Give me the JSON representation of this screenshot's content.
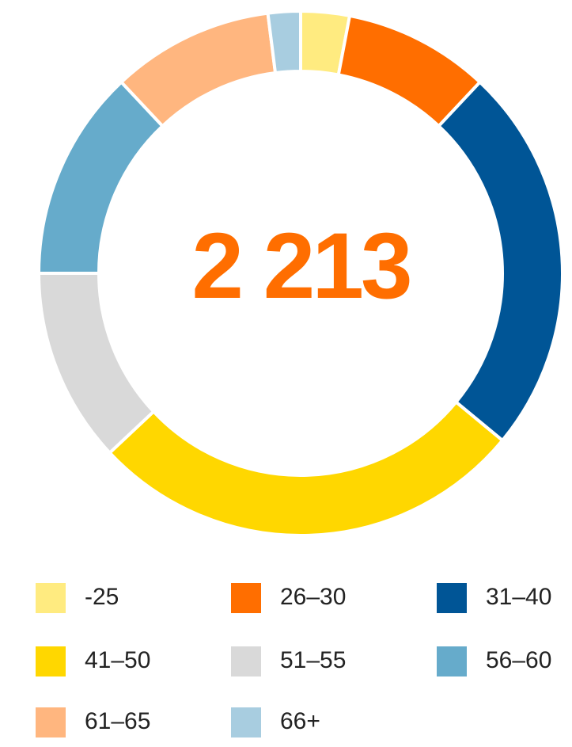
{
  "chart_data": {
    "type": "donut",
    "center_label": "2 213",
    "categories": [
      "-25",
      "26–30",
      "31–40",
      "41–50",
      "51–55",
      "56–60",
      "61–65",
      "66+"
    ],
    "values": [
      3,
      9,
      24,
      27,
      12,
      13,
      10,
      2
    ],
    "colors": [
      "#ffeb80",
      "#ff6e00",
      "#005596",
      "#ffd700",
      "#d9d9d9",
      "#66abcb",
      "#ffb67f",
      "#a8cde0"
    ],
    "legend": "bottom"
  }
}
